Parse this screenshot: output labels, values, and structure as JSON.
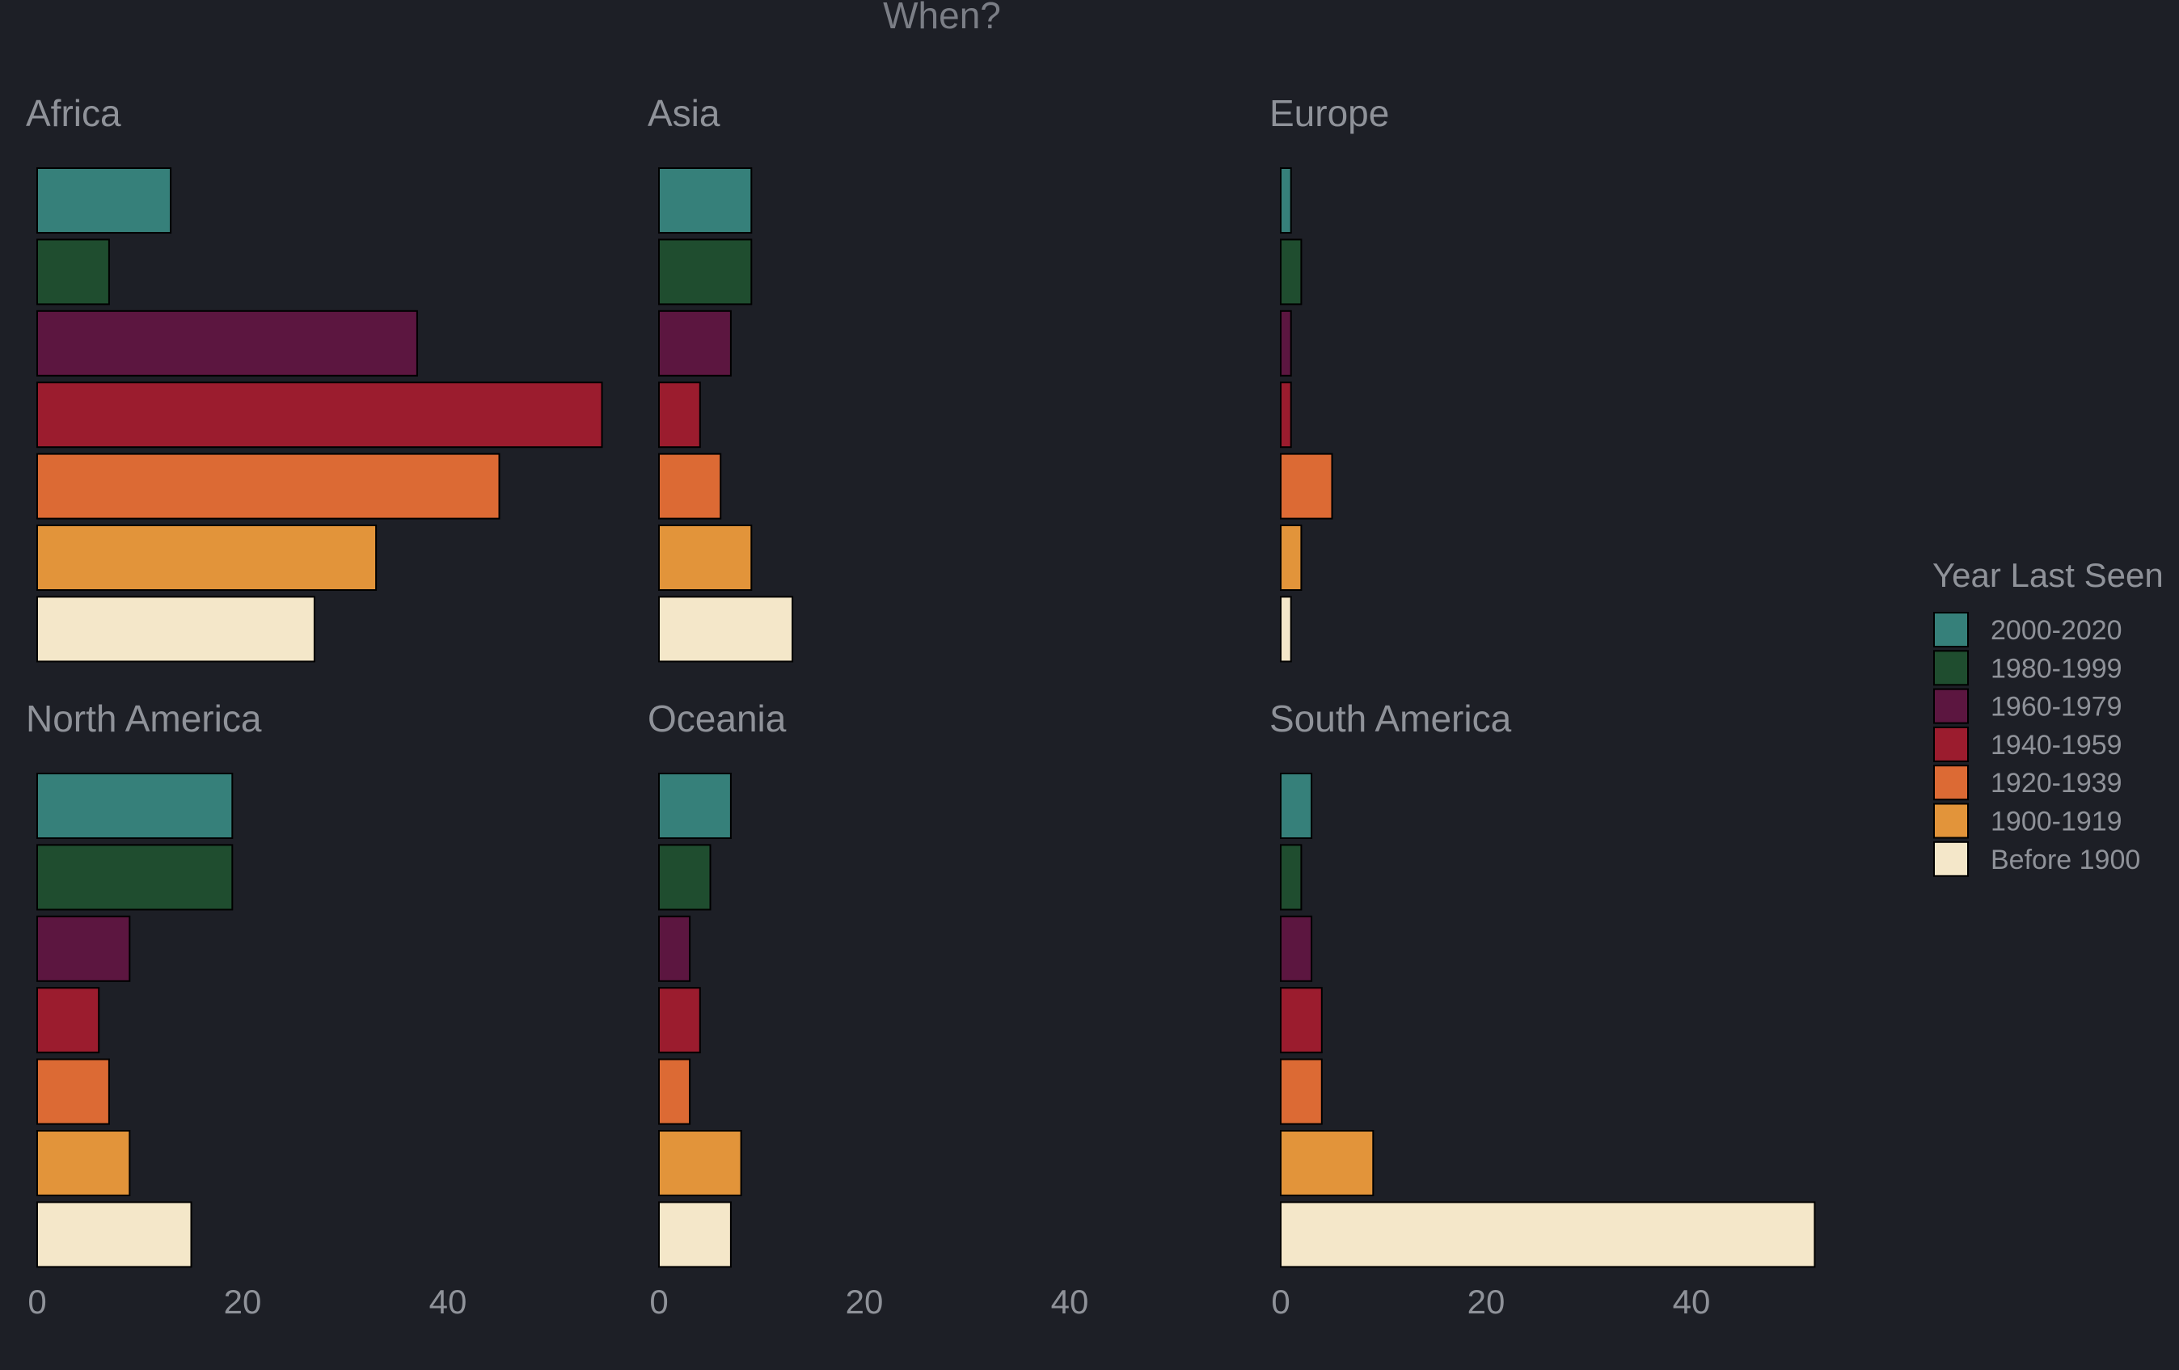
{
  "chart_data": {
    "type": "bar",
    "orientation": "horizontal",
    "layout": "facets-2x3",
    "title": "When?",
    "xlabel": "",
    "ylabel": "",
    "xlim": [
      0,
      57
    ],
    "x_ticks": [
      0,
      20,
      40
    ],
    "grid": false,
    "categories": [
      "2000-2020",
      "1980-1999",
      "1960-1979",
      "1940-1959",
      "1920-1939",
      "1900-1919",
      "Before 1900"
    ],
    "colors": [
      "#36807a",
      "#1f4d2f",
      "#5c1640",
      "#9b1c2e",
      "#dc6a34",
      "#e2943a",
      "#f4e7c9"
    ],
    "legend": {
      "title": "Year Last Seen",
      "position": "right",
      "entries": [
        "2000-2020",
        "1980-1999",
        "1960-1979",
        "1940-1959",
        "1920-1939",
        "1900-1919",
        "Before 1900"
      ]
    },
    "facets": [
      {
        "name": "Africa",
        "values": [
          13,
          7,
          37,
          55,
          45,
          33,
          27
        ]
      },
      {
        "name": "Asia",
        "values": [
          9,
          9,
          7,
          4,
          6,
          9,
          13
        ]
      },
      {
        "name": "Europe",
        "values": [
          1,
          2,
          1,
          1,
          5,
          2,
          1
        ]
      },
      {
        "name": "North America",
        "values": [
          19,
          19,
          9,
          6,
          7,
          9,
          15
        ]
      },
      {
        "name": "Oceania",
        "values": [
          7,
          5,
          3,
          4,
          3,
          8,
          7
        ]
      },
      {
        "name": "South America",
        "values": [
          3,
          2,
          3,
          4,
          4,
          9,
          52
        ]
      }
    ]
  }
}
